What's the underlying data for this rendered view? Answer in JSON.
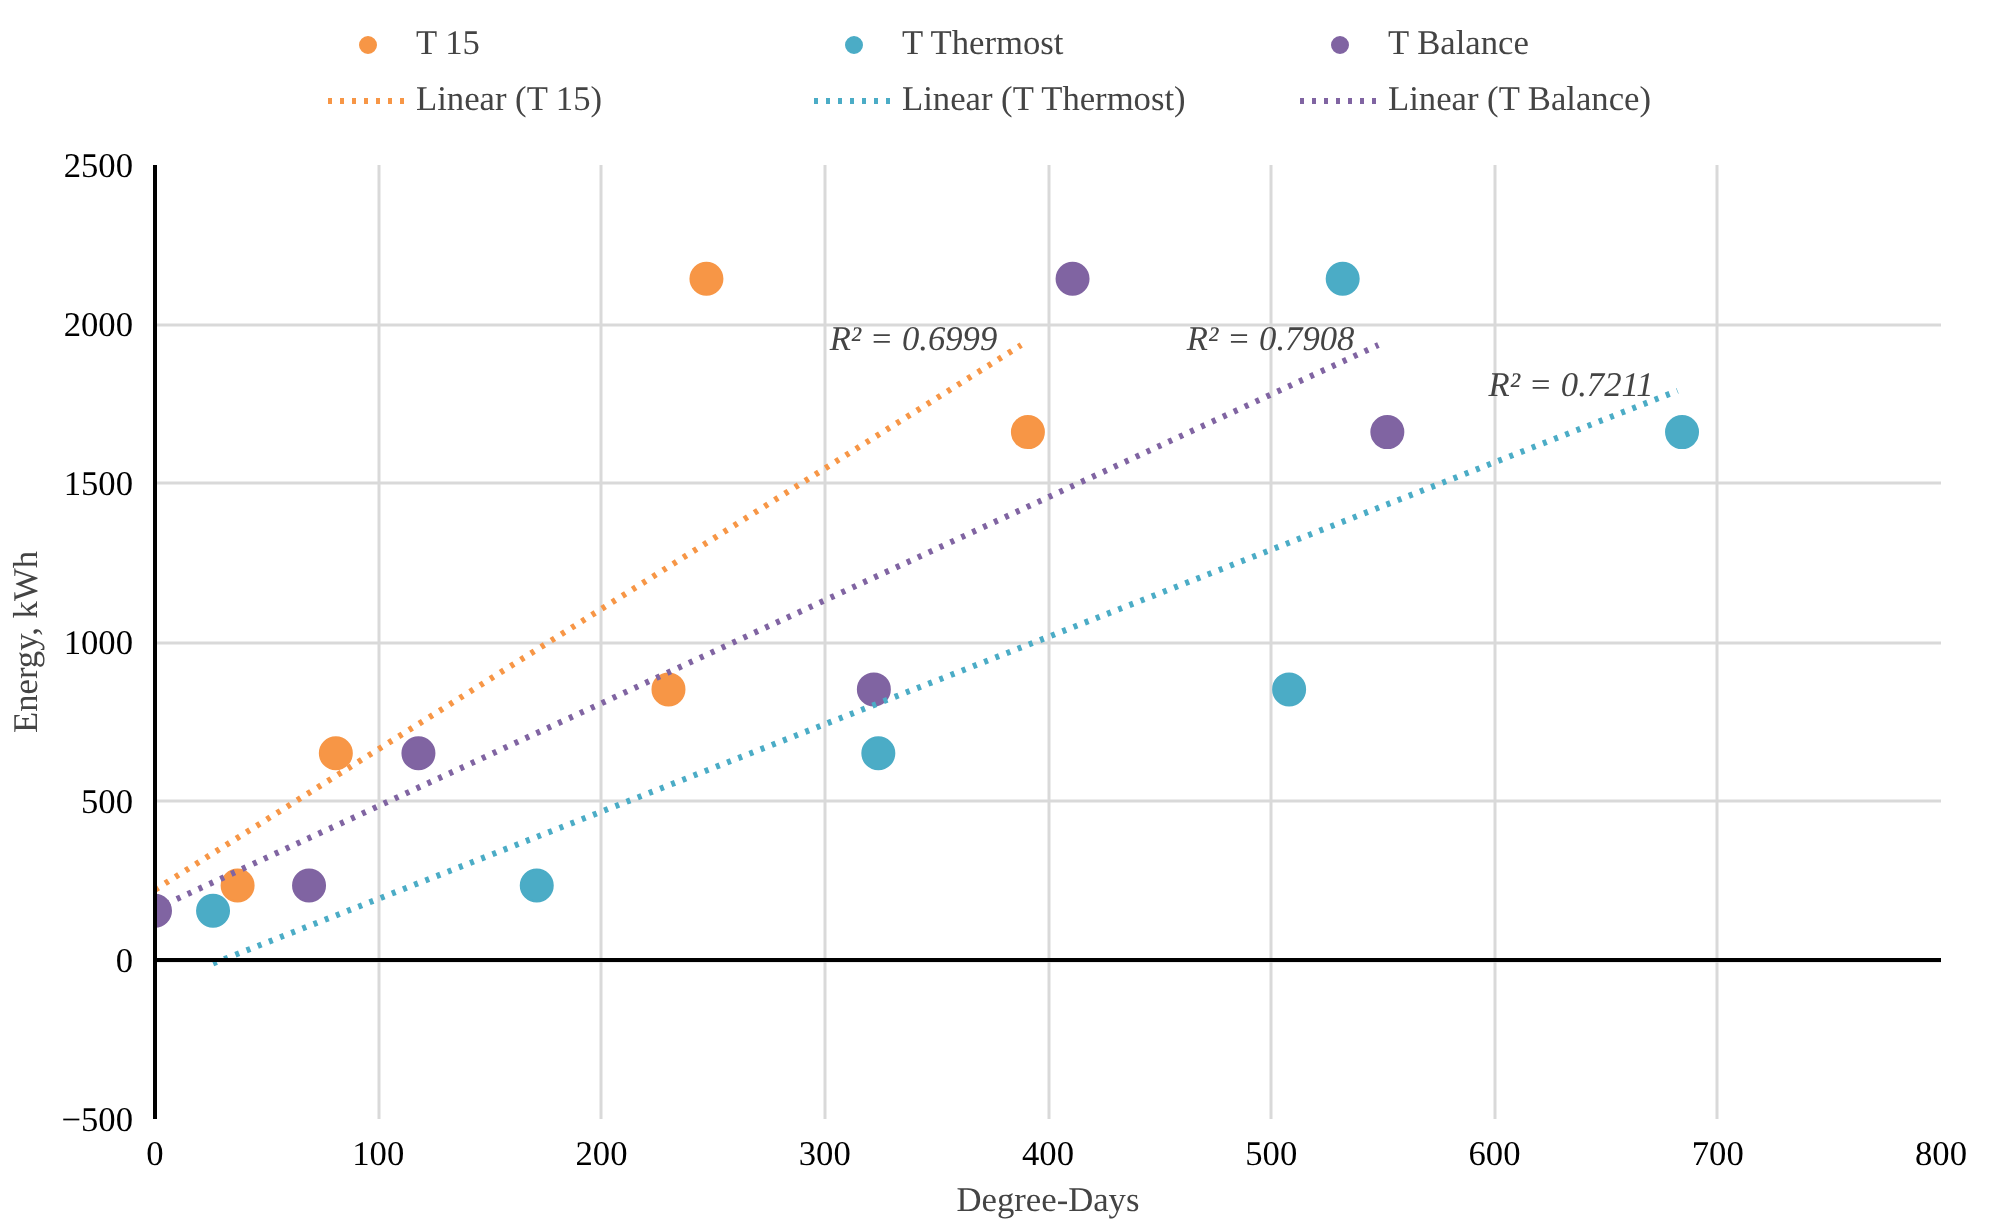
{
  "chart_data": {
    "type": "scatter",
    "xlabel": "Degree-Days",
    "ylabel": "Energy, kWh",
    "xlim": [
      0,
      800
    ],
    "xticks": [
      0,
      100,
      200,
      300,
      400,
      500,
      600,
      700,
      800
    ],
    "ylim": [
      -500,
      2500
    ],
    "yticks": [
      -500,
      0,
      500,
      1000,
      1500,
      2000,
      2500
    ],
    "grid": true,
    "legend": "top",
    "marker": "circle",
    "series": [
      {
        "name": "T 15",
        "color": "#f79646",
        "x": [
          37,
          81,
          230,
          247,
          391
        ],
        "values": [
          234,
          650,
          851,
          2142,
          1660
        ]
      },
      {
        "name": "T Thermost",
        "color": "#4bacc6",
        "x": [
          26,
          171,
          324,
          508,
          532,
          684
        ],
        "values": [
          155,
          234,
          650,
          851,
          2142,
          1660
        ]
      },
      {
        "name": "T Balance",
        "color": "#8064a2",
        "x": [
          0,
          69,
          118,
          322,
          411,
          552
        ],
        "values": [
          155,
          234,
          650,
          851,
          2142,
          1660
        ]
      },
      {
        "name": "Linear (T 15)",
        "type": "line",
        "line_style": "dotted",
        "marker": "none",
        "color": "#f79646",
        "x": [
          0,
          388
        ],
        "values": [
          221,
          1934
        ]
      },
      {
        "name": "Linear (T Thermost)",
        "type": "line",
        "line_style": "dotted",
        "marker": "none",
        "color": "#4bacc6",
        "x": [
          26,
          682
        ],
        "values": [
          -11,
          1790
        ]
      },
      {
        "name": "Linear (T Balance)",
        "type": "line",
        "line_style": "dotted",
        "marker": "none",
        "color": "#8064a2",
        "x": [
          0,
          548
        ],
        "values": [
          160,
          1934
        ]
      }
    ],
    "ref_lines": [
      {
        "axis": "y",
        "value": 0,
        "label": null,
        "color": "#000000"
      }
    ],
    "annotations": [
      {
        "text": "R² = 0.6999",
        "x": 388,
        "y": 1934
      },
      {
        "text": "R² = 0.7908",
        "x": 548,
        "y": 1934
      },
      {
        "text": "R² = 0.7211",
        "x": 682,
        "y": 1790
      }
    ]
  }
}
